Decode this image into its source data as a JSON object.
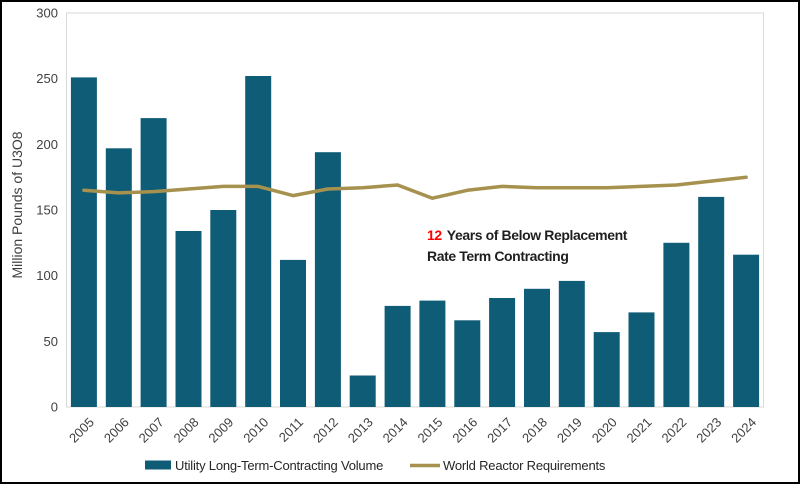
{
  "chart_data": {
    "type": "bar",
    "title": "",
    "xlabel": "",
    "ylabel": "Million Pounds of U3O8",
    "ylim": [
      0,
      300
    ],
    "ytick_step": 50,
    "yticks": [
      0,
      50,
      100,
      150,
      200,
      250,
      300
    ],
    "grid": false,
    "legend_position": "bottom",
    "categories": [
      "2005",
      "2006",
      "2007",
      "2008",
      "2009",
      "2010",
      "2011",
      "2012",
      "2013",
      "2014",
      "2015",
      "2016",
      "2017",
      "2018",
      "2019",
      "2020",
      "2021",
      "2022",
      "2023",
      "2024"
    ],
    "series": [
      {
        "name": "Utility Long-Term-Contracting Volume",
        "type": "bar",
        "color": "#0f5c76",
        "values": [
          251,
          197,
          220,
          134,
          150,
          252,
          112,
          194,
          24,
          77,
          81,
          66,
          83,
          90,
          96,
          57,
          72,
          125,
          160,
          116
        ]
      },
      {
        "name": "World Reactor Requirements",
        "type": "line",
        "color": "#a6914e",
        "values": [
          165,
          163,
          164,
          166,
          168,
          168,
          161,
          166,
          167,
          169,
          159,
          165,
          168,
          167,
          167,
          167,
          168,
          169,
          172,
          175
        ]
      }
    ],
    "annotation": {
      "highlight": "12",
      "highlight_color": "#ff0000",
      "line1": "Years of Below Replacement",
      "line2": "Rate Term Contracting"
    },
    "colors": {
      "axis_line": "#d9d9d9",
      "tick_text": "#404040"
    }
  }
}
